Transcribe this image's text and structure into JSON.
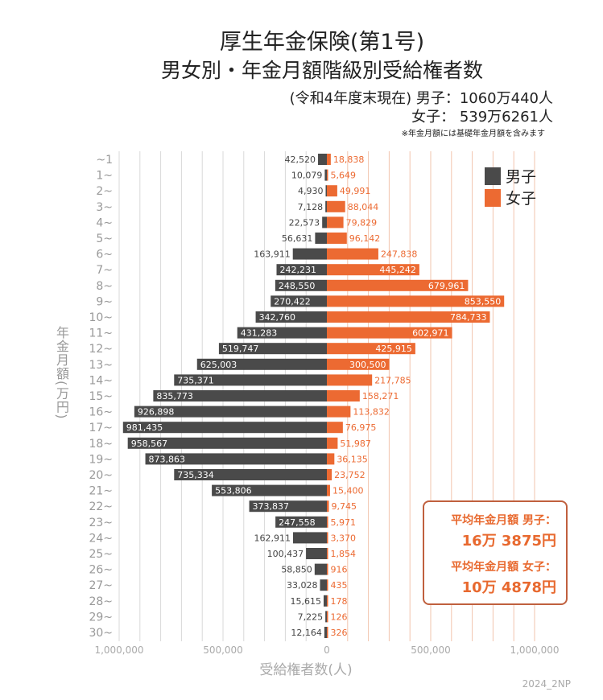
{
  "header": {
    "title_line1": "厚生年金保険(第1号)",
    "title_line2": "男女別・年金月額階級別受給権者数",
    "subtitle_line1": "(令和4年度末現在) 男子：1060万440人",
    "subtitle_line2": "女子： 539万6261人",
    "note": "※年金月額には基礎年金月額を含みます"
  },
  "average_box": {
    "male_label": "平均年金月額 男子：",
    "male_value": "16万 3875円",
    "female_label": "平均年金月額 女子：",
    "female_value": "10万 4878円"
  },
  "credit": "2024_2NP",
  "colors": {
    "male": "#4a4a4a",
    "female": "#ec6a32",
    "grid_male": "#d9d9d9",
    "grid_female": "#f2c4ae"
  },
  "chart_data": {
    "type": "bar",
    "orientation": "horizontal-butterfly",
    "ylabel": "年金月額(万円)",
    "xlabel": "受給権者数(人)",
    "xlim": [
      0,
      1000000
    ],
    "x_tick_labels_left": [
      "1,000,000",
      "500,000",
      "0"
    ],
    "x_tick_labels_right": [
      "500,000",
      "1,000,000"
    ],
    "grid": true,
    "legend": {
      "position": "top-right",
      "entries": [
        "男子",
        "女子"
      ]
    },
    "categories": [
      "~1",
      "1~",
      "2~",
      "3~",
      "4~",
      "5~",
      "6~",
      "7~",
      "8~",
      "9~",
      "10~",
      "11~",
      "12~",
      "13~",
      "14~",
      "15~",
      "16~",
      "17~",
      "18~",
      "19~",
      "20~",
      "21~",
      "22~",
      "23~",
      "24~",
      "25~",
      "26~",
      "27~",
      "28~",
      "29~",
      "30~"
    ],
    "series": [
      {
        "name": "男子",
        "values": [
          42520,
          10079,
          4930,
          7128,
          22573,
          56631,
          163911,
          242231,
          248550,
          270422,
          342760,
          431283,
          519747,
          625003,
          735371,
          835773,
          926898,
          981435,
          958567,
          873863,
          735334,
          553806,
          373837,
          247558,
          162911,
          100437,
          58850,
          33028,
          15615,
          7225,
          12164
        ],
        "labels": [
          "42,520",
          "10,079",
          "4,930",
          "7,128",
          "22,573",
          "56,631",
          "163,911",
          "242,231",
          "248,550",
          "270,422",
          "342,760",
          "431,283",
          "519,747",
          "625,003",
          "735,371",
          "835,773",
          "926,898",
          "981,435",
          "958,567",
          "873,863",
          "735,334",
          "553,806",
          "373,837",
          "247,558",
          "162,911",
          "100,437",
          "58,850",
          "33,028",
          "15,615",
          "7,225",
          "12,164"
        ]
      },
      {
        "name": "女子",
        "values": [
          18838,
          5649,
          49991,
          88044,
          79829,
          96142,
          247838,
          445242,
          679961,
          853550,
          784733,
          602971,
          425915,
          300500,
          217785,
          158271,
          113832,
          76975,
          51987,
          36135,
          23752,
          15400,
          9745,
          5971,
          3370,
          1854,
          916,
          435,
          178,
          126,
          326
        ],
        "labels": [
          "18,838",
          "5,649",
          "49,991",
          "88,044",
          "79,829",
          "96,142",
          "247,838",
          "445,242",
          "679,961",
          "853,550",
          "784,733",
          "602,971",
          "425,915",
          "300,500",
          "217,785",
          "158,271",
          "113,832",
          "76,975",
          "51,987",
          "36,135",
          "23,752",
          "15,400",
          "9,745",
          "5,971",
          "3,370",
          "1,854",
          "916",
          "435",
          "178",
          "126",
          "326"
        ]
      }
    ]
  }
}
